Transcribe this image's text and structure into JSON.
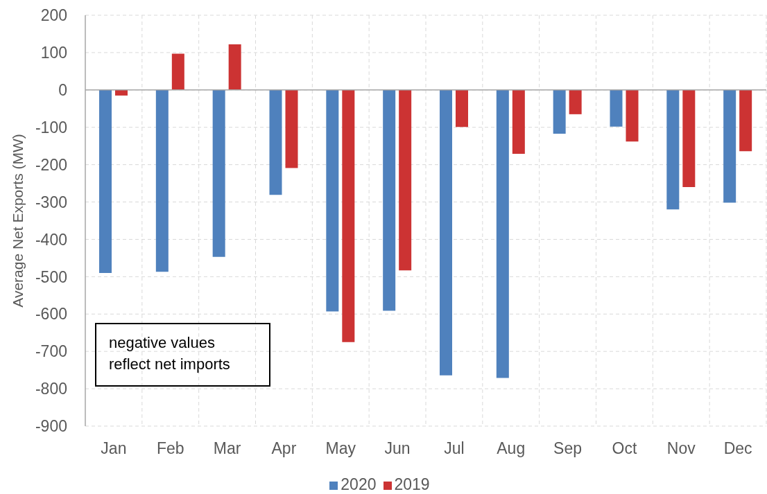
{
  "chart_data": {
    "type": "bar",
    "ylabel": "Average Net Exports (MW)",
    "categories": [
      "Jan",
      "Feb",
      "Mar",
      "Apr",
      "May",
      "Jun",
      "Jul",
      "Aug",
      "Sep",
      "Oct",
      "Nov",
      "Dec"
    ],
    "series": [
      {
        "name": "2020",
        "color": "#4f81bd",
        "values": [
          -490,
          -487,
          -447,
          -281,
          -593,
          -591,
          -764,
          -771,
          -117,
          -98,
          -320,
          -302
        ]
      },
      {
        "name": "2019",
        "color": "#cc3333",
        "values": [
          -15,
          97,
          122,
          -209,
          -675,
          -483,
          -99,
          -171,
          -65,
          -138,
          -260,
          -164
        ]
      }
    ],
    "ylim": [
      -900,
      200
    ],
    "yticks": [
      -900,
      -800,
      -700,
      -600,
      -500,
      -400,
      -300,
      -200,
      -100,
      0,
      100,
      200
    ],
    "grid": true,
    "legend": "bottom",
    "annotations": [
      "negative values reflect net imports"
    ]
  }
}
